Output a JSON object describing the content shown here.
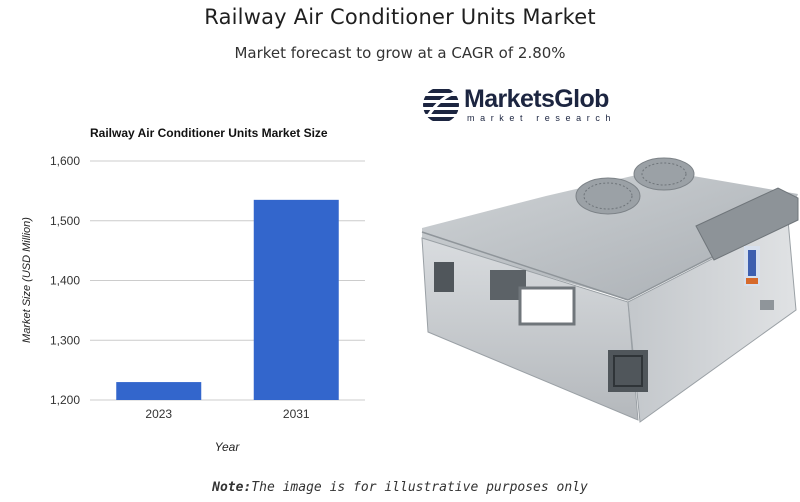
{
  "header": {
    "title": "Railway Air Conditioner Units Market",
    "subtitle": "Market forecast to grow at a CAGR of 2.80%"
  },
  "logo": {
    "name": "MarketsGlob",
    "tagline": "market research"
  },
  "note": {
    "label": "Note:",
    "text": "The image is for illustrative purposes only"
  },
  "colors": {
    "bar": "#3366cc",
    "grid": "#cccccc",
    "logo_navy": "#1c2540"
  },
  "illustration": {
    "icon": "railway-air-conditioner-unit-picture"
  },
  "chart_data": {
    "type": "bar",
    "title": "Railway Air Conditioner Units Market Size",
    "xlabel": "Year",
    "ylabel": "Market Size (USD Million)",
    "categories": [
      "2023",
      "2031"
    ],
    "values": [
      1230,
      1535
    ],
    "ylim": [
      1200,
      1600
    ],
    "yticks": [
      1200,
      1300,
      1400,
      1500,
      1600
    ],
    "ytick_labels": [
      "1,200",
      "1,300",
      "1,400",
      "1,500",
      "1,600"
    ],
    "grid": true,
    "legend": "none"
  }
}
